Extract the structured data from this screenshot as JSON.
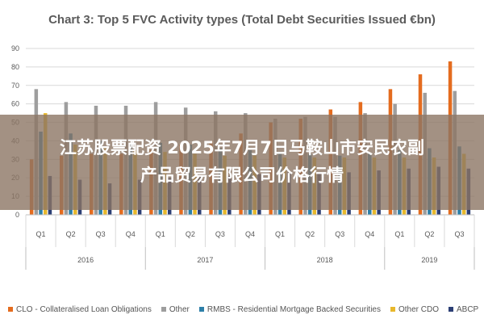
{
  "chart_data": {
    "type": "bar",
    "title": "Chart 3: Top 5 FVC Activity types (Total Debt Securities Issued €bn)",
    "categories": [
      "Q1",
      "Q2",
      "Q3",
      "Q4",
      "Q1",
      "Q2",
      "Q3",
      "Q4",
      "Q1",
      "Q2",
      "Q3",
      "Q4",
      "Q1",
      "Q2",
      "Q3"
    ],
    "year_groups": [
      {
        "label": "2016",
        "count": 4
      },
      {
        "label": "2017",
        "count": 4
      },
      {
        "label": "2018",
        "count": 4
      },
      {
        "label": "2019",
        "count": 3
      }
    ],
    "ylim": [
      0,
      90
    ],
    "yticks": [
      0,
      10,
      20,
      30,
      40,
      50,
      60,
      70,
      80,
      90
    ],
    "grid": true,
    "legend_position": "bottom",
    "series": [
      {
        "name": "CLO - Collateralised Loan Obligations",
        "color": "#e46c1f",
        "values": [
          30,
          32,
          33,
          33,
          35,
          38,
          40,
          44,
          50,
          52,
          57,
          61,
          68,
          76,
          83
        ]
      },
      {
        "name": "Other",
        "color": "#9e9e9e",
        "values": [
          68,
          61,
          59,
          59,
          61,
          58,
          56,
          55,
          52,
          53,
          53,
          55,
          60,
          66,
          67
        ]
      },
      {
        "name": "RMBS - Residential Mortgage Backed Securities",
        "color": "#2d7fa8",
        "values": [
          45,
          44,
          40,
          39,
          39,
          38,
          36,
          35,
          34,
          33,
          32,
          33,
          35,
          36,
          37
        ]
      },
      {
        "name": "Other CDO",
        "color": "#e8b82c",
        "values": [
          55,
          38,
          36,
          35,
          34,
          33,
          32,
          32,
          31,
          31,
          31,
          31,
          31,
          31,
          33
        ]
      },
      {
        "name": "ABCP",
        "color": "#2c3f75",
        "values": [
          21,
          19,
          17,
          19,
          20,
          21,
          21,
          22,
          23,
          23,
          23,
          24,
          25,
          26,
          25
        ]
      }
    ]
  },
  "overlay": {
    "line1": "江苏股票配资 2025年7月7日马鞍山市安民农副",
    "line2": "产品贸易有限公司价格行情"
  }
}
